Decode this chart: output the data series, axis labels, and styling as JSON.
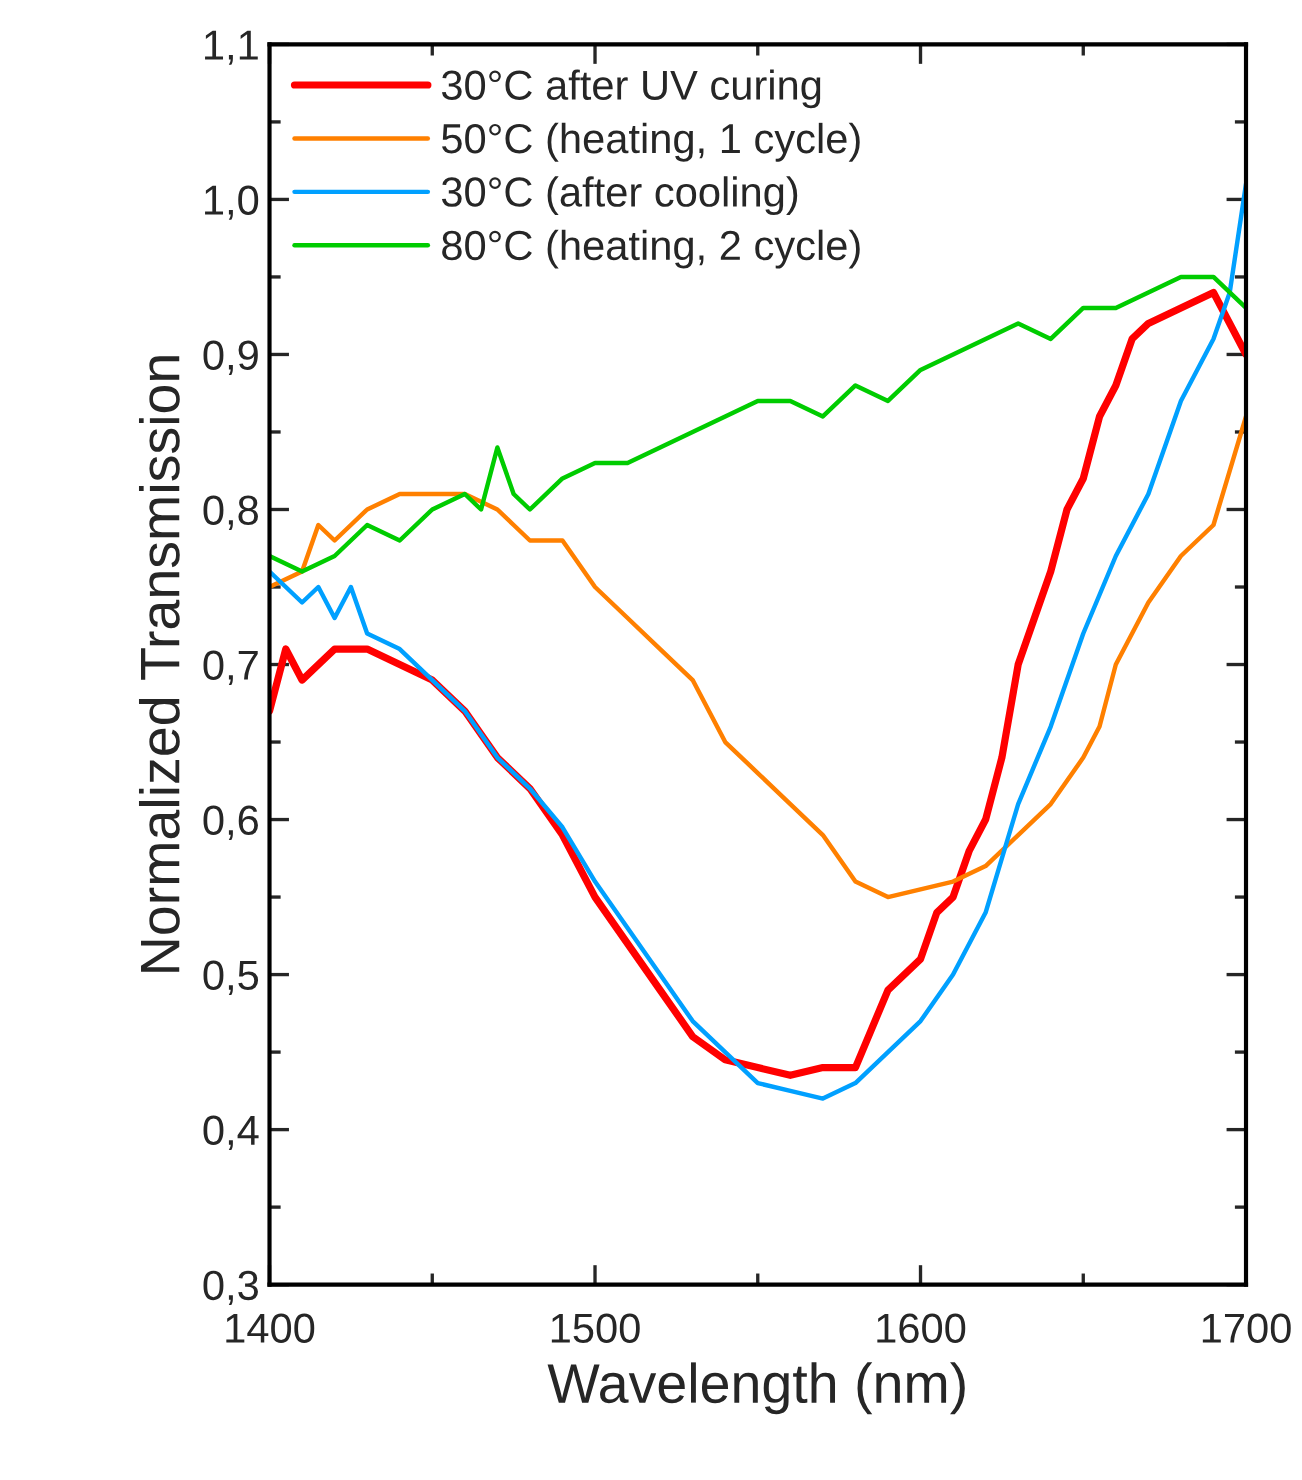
{
  "chart_data": {
    "type": "line",
    "xlabel": "Wavelength (nm)",
    "ylabel": "Normalized Transmission",
    "xlim": [
      1400,
      1700
    ],
    "ylim": [
      0.3,
      1.1
    ],
    "xticks": [
      1400,
      1500,
      1600,
      1700
    ],
    "yticks": [
      {
        "value": 0.3,
        "label": "0,3"
      },
      {
        "value": 0.4,
        "label": "0,4"
      },
      {
        "value": 0.5,
        "label": "0,5"
      },
      {
        "value": 0.6,
        "label": "0,6"
      },
      {
        "value": 0.7,
        "label": "0,7"
      },
      {
        "value": 0.8,
        "label": "0,8"
      },
      {
        "value": 0.9,
        "label": "0,9"
      },
      {
        "value": 1.0,
        "label": "1,0"
      },
      {
        "value": 1.1,
        "label": "1,1"
      }
    ],
    "grid": false,
    "legend": "top left",
    "marker": "none",
    "line_style": "solid",
    "series": [
      {
        "name": "30°C after UV curing",
        "color": "#ff0000",
        "x": [
          1400,
          1405,
          1410,
          1415,
          1420,
          1430,
          1440,
          1450,
          1460,
          1470,
          1480,
          1490,
          1500,
          1510,
          1520,
          1530,
          1540,
          1550,
          1560,
          1570,
          1580,
          1585,
          1590,
          1600,
          1605,
          1610,
          1615,
          1620,
          1625,
          1630,
          1635,
          1640,
          1645,
          1650,
          1655,
          1660,
          1665,
          1670,
          1680,
          1690,
          1700
        ],
        "values": [
          0.67,
          0.71,
          0.69,
          0.7,
          0.71,
          0.71,
          0.7,
          0.69,
          0.67,
          0.64,
          0.62,
          0.59,
          0.55,
          0.52,
          0.49,
          0.46,
          0.445,
          0.44,
          0.435,
          0.44,
          0.44,
          0.465,
          0.49,
          0.51,
          0.54,
          0.55,
          0.58,
          0.6,
          0.64,
          0.7,
          0.73,
          0.76,
          0.8,
          0.82,
          0.86,
          0.88,
          0.91,
          0.92,
          0.93,
          0.94,
          0.9
        ]
      },
      {
        "name": "50°C (heating, 1 cycle)",
        "color": "#ff8000",
        "x": [
          1400,
          1410,
          1415,
          1420,
          1430,
          1440,
          1450,
          1460,
          1470,
          1475,
          1480,
          1490,
          1500,
          1510,
          1520,
          1530,
          1540,
          1550,
          1560,
          1570,
          1580,
          1590,
          1600,
          1610,
          1620,
          1630,
          1640,
          1650,
          1655,
          1660,
          1670,
          1680,
          1690,
          1700
        ],
        "values": [
          0.75,
          0.76,
          0.79,
          0.78,
          0.8,
          0.81,
          0.81,
          0.81,
          0.8,
          0.79,
          0.78,
          0.78,
          0.75,
          0.73,
          0.71,
          0.69,
          0.65,
          0.63,
          0.61,
          0.59,
          0.56,
          0.55,
          0.555,
          0.56,
          0.57,
          0.59,
          0.61,
          0.64,
          0.66,
          0.7,
          0.74,
          0.77,
          0.79,
          0.86
        ]
      },
      {
        "name": "30°C (after cooling)",
        "color": "#00a0ff",
        "x": [
          1400,
          1405,
          1410,
          1415,
          1420,
          1425,
          1430,
          1440,
          1450,
          1460,
          1470,
          1480,
          1490,
          1500,
          1510,
          1520,
          1530,
          1540,
          1550,
          1560,
          1570,
          1580,
          1590,
          1600,
          1610,
          1620,
          1630,
          1640,
          1650,
          1660,
          1670,
          1680,
          1690,
          1695,
          1700
        ],
        "values": [
          0.76,
          0.75,
          0.74,
          0.75,
          0.73,
          0.75,
          0.72,
          0.71,
          0.69,
          0.67,
          0.64,
          0.62,
          0.595,
          0.56,
          0.53,
          0.5,
          0.47,
          0.45,
          0.43,
          0.425,
          0.42,
          0.43,
          0.45,
          0.47,
          0.5,
          0.54,
          0.61,
          0.66,
          0.72,
          0.77,
          0.81,
          0.87,
          0.91,
          0.94,
          1.01
        ]
      },
      {
        "name": "80°C (heating, 2 cycle)",
        "color": "#00cc00",
        "x": [
          1400,
          1410,
          1420,
          1430,
          1440,
          1450,
          1460,
          1465,
          1470,
          1475,
          1480,
          1490,
          1500,
          1510,
          1520,
          1530,
          1540,
          1550,
          1560,
          1570,
          1580,
          1590,
          1600,
          1610,
          1620,
          1630,
          1640,
          1650,
          1660,
          1670,
          1680,
          1690,
          1700
        ],
        "values": [
          0.77,
          0.76,
          0.77,
          0.79,
          0.78,
          0.8,
          0.81,
          0.8,
          0.84,
          0.81,
          0.8,
          0.82,
          0.83,
          0.83,
          0.84,
          0.85,
          0.86,
          0.87,
          0.87,
          0.86,
          0.88,
          0.87,
          0.89,
          0.9,
          0.91,
          0.92,
          0.91,
          0.93,
          0.93,
          0.94,
          0.95,
          0.95,
          0.93
        ]
      }
    ]
  }
}
